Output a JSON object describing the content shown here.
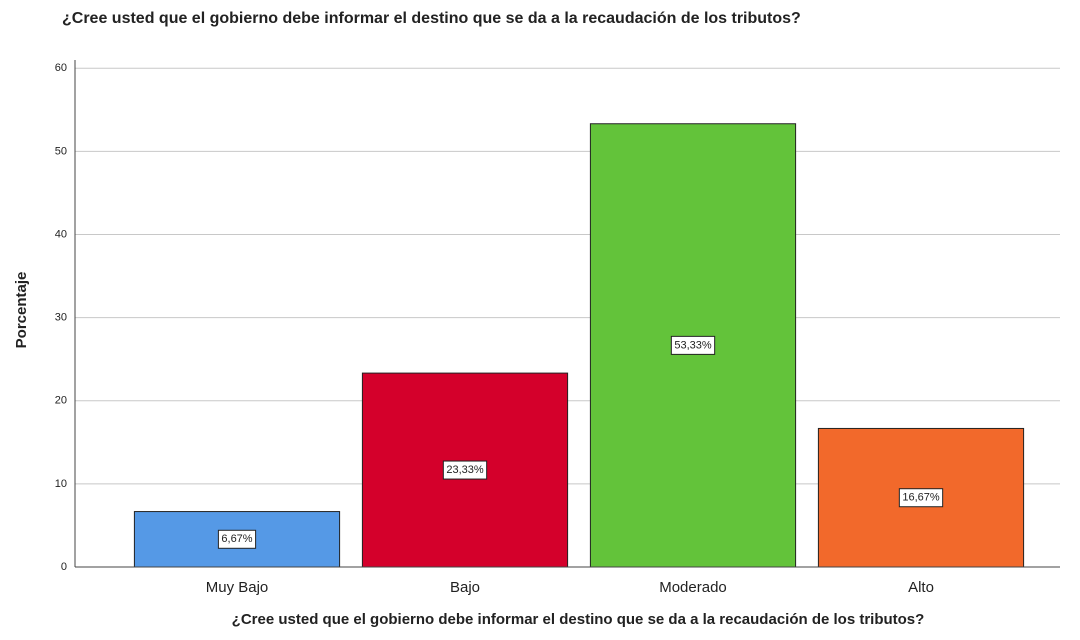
{
  "chart_data": {
    "type": "bar",
    "title": "¿Cree usted que el gobierno debe informar el destino que se da a la recaudación de los tributos?",
    "x_label": "¿Cree usted que el gobierno debe informar el destino que se da a la recaudación de los tributos?",
    "y_label": "Porcentaje",
    "categories": [
      "Muy Bajo",
      "Bajo",
      "Moderado",
      "Alto"
    ],
    "values": [
      6.67,
      23.33,
      53.33,
      16.67
    ],
    "value_labels": [
      "6,67%",
      "23,33%",
      "53,33%",
      "16,67%"
    ],
    "colors": [
      "#5599e6",
      "#d4002b",
      "#63c33a",
      "#f2692b"
    ],
    "ylim": [
      0,
      61
    ],
    "yticks": [
      0,
      10,
      20,
      30,
      40,
      50,
      60
    ],
    "grid": true
  }
}
